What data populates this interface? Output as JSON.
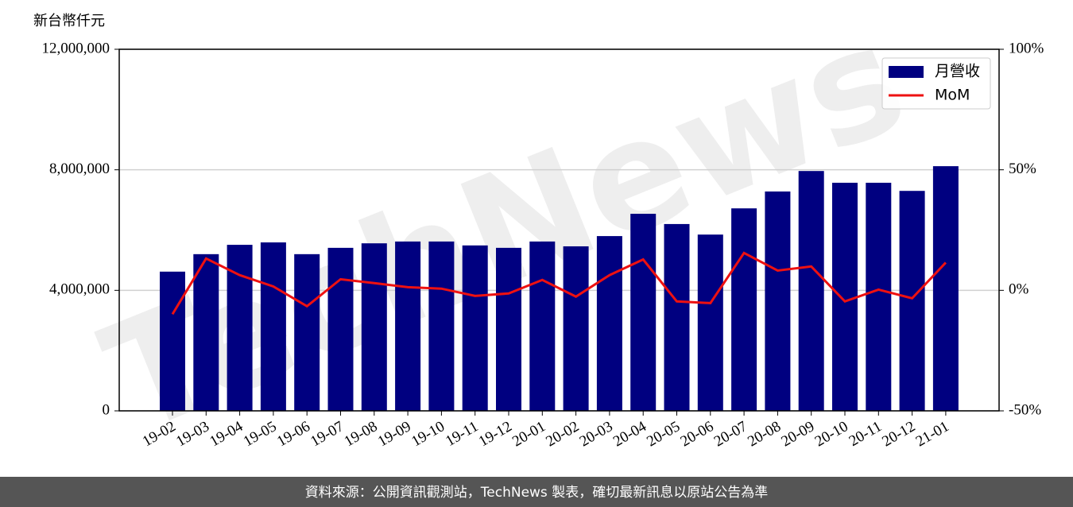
{
  "chart_data": {
    "type": "bar_line",
    "y_axis_label": "新台幣仟元",
    "watermark": "TechNews",
    "footer": "資料來源：公開資訊觀測站，TechNews 製表，確切最新訊息以原站公告為準",
    "categories": [
      "19-02",
      "19-03",
      "19-04",
      "19-05",
      "19-06",
      "19-07",
      "19-08",
      "19-09",
      "19-10",
      "19-11",
      "19-12",
      "20-01",
      "20-02",
      "20-03",
      "20-04",
      "20-05",
      "20-06",
      "20-07",
      "20-08",
      "20-09",
      "20-10",
      "20-11",
      "20-12",
      "21-01"
    ],
    "series": [
      {
        "name": "月營收",
        "type": "bar",
        "color": "#000080",
        "values": [
          4620000,
          5200000,
          5510000,
          5590000,
          5200000,
          5410000,
          5560000,
          5620000,
          5620000,
          5490000,
          5410000,
          5620000,
          5460000,
          5800000,
          6540000,
          6200000,
          5850000,
          6720000,
          7280000,
          7960000,
          7570000,
          7570000,
          7300000,
          8120000
        ]
      },
      {
        "name": "MoM",
        "type": "line",
        "axis": "y2",
        "color": "#ee1111",
        "values": [
          -9.9,
          13.2,
          6.3,
          1.6,
          -6.6,
          4.6,
          3.0,
          1.3,
          0.7,
          -2.3,
          -1.3,
          4.3,
          -2.6,
          6.3,
          12.8,
          -4.6,
          -5.3,
          15.5,
          8.2,
          9.9,
          -4.6,
          0.3,
          -3.3,
          11.5
        ]
      }
    ],
    "ylim": [
      0,
      12000000
    ],
    "yticks": [
      0,
      {
        "value": 4000000,
        "label": "4,000,000"
      },
      {
        "value": 8000000,
        "label": "8,000,000"
      },
      {
        "value": 12000000,
        "label": "12,000,000"
      }
    ],
    "y2lim": [
      -50,
      100
    ],
    "y2ticks": [
      {
        "value": -50,
        "label": "-50%"
      },
      {
        "value": 0,
        "label": "0%"
      },
      {
        "value": 50,
        "label": "50%"
      },
      {
        "value": 100,
        "label": "100%"
      }
    ],
    "grid": true,
    "legend": "upper right"
  }
}
